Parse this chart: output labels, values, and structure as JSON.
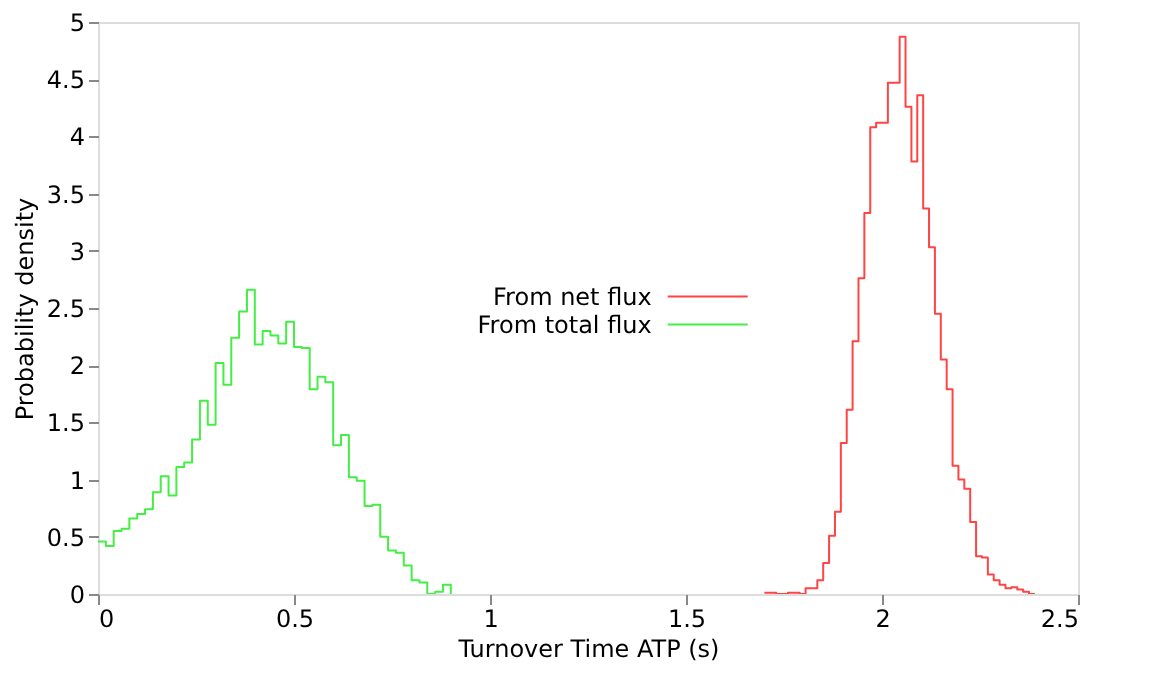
{
  "chart_data": {
    "type": "step",
    "xlabel": "Turnover Time ATP (s)",
    "ylabel": "Probability density",
    "xlim": [
      0,
      2.5
    ],
    "ylim": [
      0,
      5
    ],
    "xticks": [
      0,
      0.5,
      1,
      1.5,
      2,
      2.5
    ],
    "yticks": [
      0,
      0.5,
      1,
      1.5,
      2,
      2.5,
      3,
      3.5,
      4,
      4.5,
      5
    ],
    "grid": false,
    "legend": "center",
    "series": [
      {
        "name": "From net flux",
        "color": "#ff4444",
        "x": [
          1.7,
          1.715,
          1.73,
          1.745,
          1.76,
          1.775,
          1.79,
          1.805,
          1.82,
          1.835,
          1.85,
          1.865,
          1.88,
          1.895,
          1.91,
          1.925,
          1.94,
          1.955,
          1.97,
          1.985,
          2.0,
          2.015,
          2.03,
          2.045,
          2.06,
          2.075,
          2.09,
          2.105,
          2.12,
          2.135,
          2.15,
          2.165,
          2.18,
          2.195,
          2.21,
          2.225,
          2.24,
          2.255,
          2.27,
          2.285,
          2.3,
          2.315,
          2.33,
          2.345,
          2.36,
          2.375,
          2.39
        ],
        "values": [
          0.01,
          0.01,
          0,
          0,
          0.01,
          0.01,
          0,
          0.05,
          0.05,
          0.12,
          0.27,
          0.51,
          0.72,
          1.32,
          1.61,
          2.21,
          2.76,
          3.33,
          4.08,
          4.12,
          4.12,
          4.47,
          4.47,
          4.87,
          4.26,
          3.78,
          4.36,
          3.37,
          3.03,
          2.45,
          2.05,
          1.79,
          1.12,
          1.0,
          0.92,
          0.63,
          0.33,
          0.32,
          0.17,
          0.12,
          0.08,
          0.05,
          0.06,
          0.04,
          0.02,
          0,
          0
        ]
      },
      {
        "name": "From total flux",
        "color": "#44ee44",
        "x": [
          0,
          0.02,
          0.04,
          0.06,
          0.08,
          0.1,
          0.12,
          0.14,
          0.16,
          0.18,
          0.2,
          0.22,
          0.24,
          0.26,
          0.28,
          0.3,
          0.32,
          0.34,
          0.36,
          0.38,
          0.4,
          0.42,
          0.44,
          0.46,
          0.48,
          0.5,
          0.52,
          0.54,
          0.56,
          0.58,
          0.6,
          0.62,
          0.64,
          0.66,
          0.68,
          0.7,
          0.72,
          0.74,
          0.76,
          0.78,
          0.8,
          0.82,
          0.84,
          0.86,
          0.88,
          0.9
        ],
        "values": [
          0.46,
          0.42,
          0.55,
          0.57,
          0.66,
          0.7,
          0.74,
          0.89,
          1.03,
          0.86,
          1.11,
          1.15,
          1.35,
          1.69,
          1.48,
          2.02,
          1.83,
          2.24,
          2.47,
          2.66,
          2.18,
          2.3,
          2.26,
          2.19,
          2.38,
          2.16,
          2.15,
          1.79,
          1.9,
          1.85,
          1.3,
          1.39,
          1.02,
          0.99,
          0.77,
          0.78,
          0.5,
          0.38,
          0.36,
          0.25,
          0.12,
          0.1,
          0,
          0.02,
          0.08,
          0
        ]
      }
    ]
  }
}
